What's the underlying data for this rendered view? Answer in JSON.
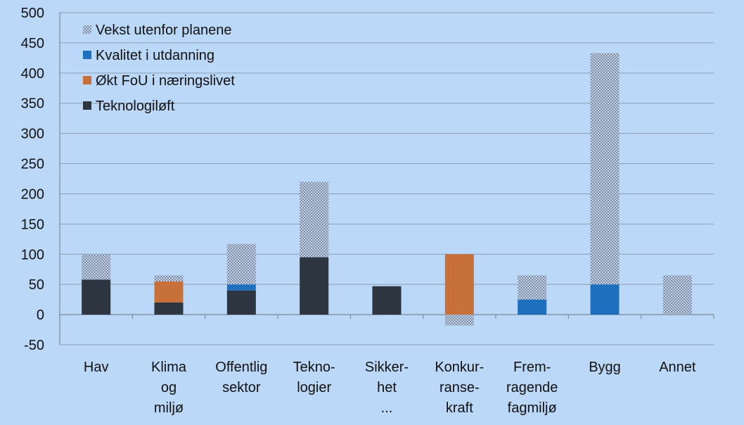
{
  "chart_data": {
    "type": "bar",
    "stacked": true,
    "categories": [
      [
        "Hav"
      ],
      [
        "Klima",
        "og",
        "miljø"
      ],
      [
        "Offentlig",
        "sektor"
      ],
      [
        "Tekno-",
        "logier"
      ],
      [
        "Sikker-",
        "het",
        "..."
      ],
      [
        "Konkur-",
        "ranse-",
        "kraft"
      ],
      [
        "Frem-",
        "ragende",
        "fagmiljø"
      ],
      [
        "Bygg"
      ],
      [
        "Annet"
      ]
    ],
    "series": [
      {
        "name": "Teknologiløft",
        "color": "#2d3540",
        "pattern": false,
        "values": [
          58,
          20,
          40,
          95,
          47,
          0,
          0,
          0,
          0
        ]
      },
      {
        "name": "Økt FoU i næringslivet",
        "color": "#c8703a",
        "pattern": false,
        "values": [
          0,
          35,
          0,
          0,
          0,
          100,
          0,
          0,
          0
        ]
      },
      {
        "name": "Kvalitet i utdanning",
        "color": "#1f6fbf",
        "pattern": false,
        "values": [
          0,
          0,
          10,
          0,
          0,
          0,
          25,
          50,
          0
        ]
      },
      {
        "name": "Vekst utenfor planene",
        "color": "#98aac4",
        "pattern": true,
        "values": [
          42,
          10,
          67,
          125,
          0,
          -18,
          40,
          383,
          65
        ]
      }
    ],
    "legend_order": [
      3,
      2,
      1,
      0
    ],
    "legend_position": "top-left",
    "ylim": [
      -50,
      500
    ],
    "yticks": [
      -50,
      0,
      50,
      100,
      150,
      200,
      250,
      300,
      350,
      400,
      450,
      500
    ],
    "grid": true,
    "title": "",
    "xlabel": "",
    "ylabel": ""
  }
}
